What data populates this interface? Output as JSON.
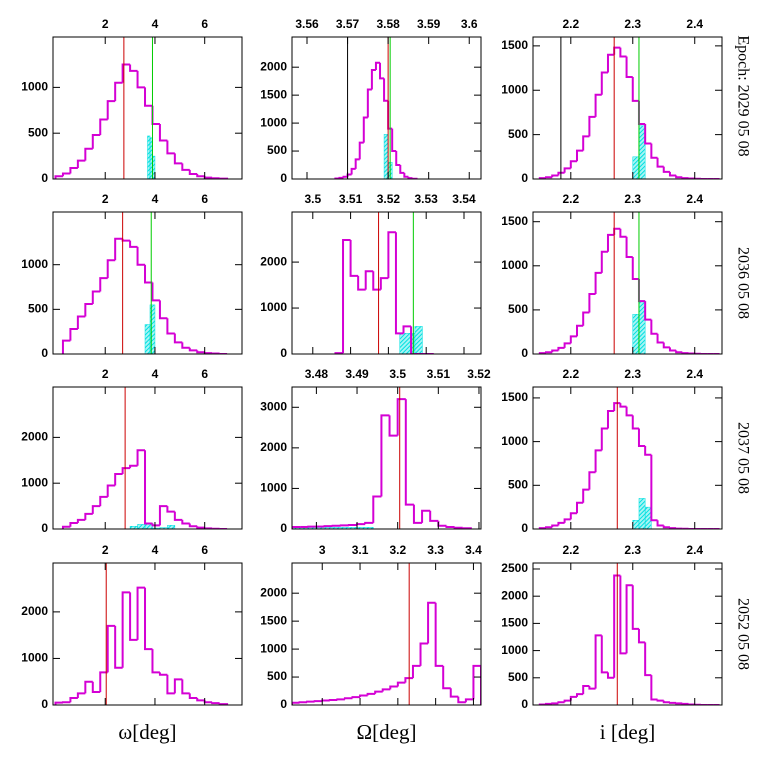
{
  "chart_data": [
    {
      "type": "histogram",
      "color": "#d400d4",
      "xlim": [
        -0.1,
        7.5
      ],
      "ylim": [
        0,
        1550
      ],
      "xticks": [
        2,
        4,
        6
      ],
      "yticks": [
        0,
        500,
        1000
      ],
      "bins": [
        0,
        0.3,
        0.6,
        0.9,
        1.2,
        1.5,
        1.8,
        2.1,
        2.4,
        2.7,
        3,
        3.3,
        3.6,
        3.9,
        4.2,
        4.5,
        4.8,
        5.1,
        5.4,
        5.7,
        6,
        6.3,
        6.6,
        6.9
      ],
      "values": [
        30,
        60,
        120,
        200,
        330,
        480,
        650,
        850,
        1050,
        1250,
        1180,
        1000,
        800,
        600,
        420,
        280,
        170,
        100,
        55,
        30,
        15,
        8,
        4
      ],
      "overlay": {
        "color": "#00e0e0",
        "bins": [
          3.7,
          3.8,
          3.9,
          4.0
        ],
        "values": [
          470,
          450,
          250
        ]
      },
      "vlines": [
        {
          "x": 2.75,
          "color": "#cc0000"
        },
        {
          "x": 3.9,
          "color": "#00cc00"
        }
      ]
    },
    {
      "type": "histogram",
      "color": "#d400d4",
      "xlim": [
        3.5563,
        3.6029
      ],
      "ylim": [
        0,
        2540
      ],
      "xticks": [
        3.56,
        3.57,
        3.58,
        3.59,
        3.6
      ],
      "yticks": [
        0,
        500,
        1000,
        1500,
        2000
      ],
      "bins": [
        3.567,
        3.568,
        3.569,
        3.57,
        3.571,
        3.572,
        3.573,
        3.574,
        3.575,
        3.576,
        3.577,
        3.578,
        3.579,
        3.58,
        3.581,
        3.582,
        3.583,
        3.584,
        3.585,
        3.586,
        3.587
      ],
      "values": [
        10,
        20,
        40,
        80,
        180,
        350,
        650,
        1100,
        1600,
        1950,
        2080,
        1800,
        1400,
        900,
        500,
        250,
        110,
        40,
        15,
        5
      ],
      "overlay": {
        "color": "#00e0e0",
        "bins": [
          3.579,
          3.58,
          3.581
        ],
        "values": [
          800,
          300
        ]
      },
      "vlines": [
        {
          "x": 3.57,
          "color": "#000000"
        },
        {
          "x": 3.58,
          "color": "#cc0000"
        },
        {
          "x": 3.5805,
          "color": "#00cc00"
        }
      ]
    },
    {
      "type": "histogram",
      "color": "#d400d4",
      "xlim": [
        2.139,
        2.444
      ],
      "ylim": [
        0,
        1600
      ],
      "xticks": [
        2.2,
        2.3,
        2.4
      ],
      "yticks": [
        0,
        500,
        1000,
        1500
      ],
      "bins": [
        2.15,
        2.16,
        2.17,
        2.18,
        2.19,
        2.2,
        2.21,
        2.22,
        2.23,
        2.24,
        2.25,
        2.26,
        2.27,
        2.28,
        2.29,
        2.3,
        2.31,
        2.32,
        2.33,
        2.34,
        2.35,
        2.36,
        2.37,
        2.38,
        2.39,
        2.4,
        2.41,
        2.42,
        2.43,
        2.44
      ],
      "values": [
        10,
        20,
        40,
        70,
        120,
        200,
        320,
        480,
        700,
        950,
        1200,
        1400,
        1480,
        1380,
        1150,
        880,
        620,
        400,
        240,
        140,
        80,
        40,
        20,
        10,
        5,
        3,
        0,
        0,
        0
      ],
      "overlay": {
        "color": "#00e0e0",
        "bins": [
          2.3,
          2.31,
          2.32
        ],
        "values": [
          250,
          600
        ]
      },
      "vlines": [
        {
          "x": 2.184,
          "color": "#000000"
        },
        {
          "x": 2.27,
          "color": "#cc0000"
        },
        {
          "x": 2.31,
          "color": "#00cc00"
        }
      ],
      "annotation": "Epoch: 2029 05 08"
    },
    {
      "type": "histogram",
      "color": "#d400d4",
      "xlim": [
        -0.1,
        7.5
      ],
      "ylim": [
        0,
        1590
      ],
      "xticks": [
        2,
        4,
        6
      ],
      "yticks": [
        0,
        500,
        1000
      ],
      "bins": [
        0.3,
        0.6,
        0.9,
        1.2,
        1.5,
        1.8,
        2.1,
        2.4,
        2.7,
        3,
        3.3,
        3.6,
        3.9,
        4.2,
        4.5,
        4.8,
        5.1,
        5.4,
        5.7,
        6,
        6.3,
        6.6,
        6.9
      ],
      "values": [
        150,
        280,
        420,
        560,
        700,
        850,
        1050,
        1290,
        1270,
        1200,
        1000,
        800,
        600,
        400,
        230,
        130,
        70,
        40,
        20,
        10,
        5,
        0
      ],
      "overlay": {
        "color": "#00e0e0",
        "bins": [
          3.6,
          3.8,
          4.0
        ],
        "values": [
          330,
          550
        ]
      },
      "vlines": [
        {
          "x": 2.7,
          "color": "#cc0000"
        },
        {
          "x": 3.85,
          "color": "#00cc00"
        }
      ]
    },
    {
      "type": "histogram",
      "color": "#d400d4",
      "xlim": [
        3.4945,
        3.5445
      ],
      "ylim": [
        0,
        3090
      ],
      "xticks": [
        3.5,
        3.51,
        3.52,
        3.53,
        3.54
      ],
      "yticks": [
        0,
        1000,
        2000
      ],
      "bins": [
        3.506,
        3.508,
        3.51,
        3.512,
        3.514,
        3.516,
        3.518,
        3.52,
        3.522,
        3.524,
        3.526,
        3.528,
        3.53,
        3.532
      ],
      "values": [
        20,
        2480,
        1700,
        1400,
        1800,
        1400,
        1650,
        2650,
        450,
        600,
        0,
        0,
        0
      ],
      "overlay": {
        "color": "#00e0e0",
        "bins": [
          3.523,
          3.527,
          3.529
        ],
        "values": [
          450,
          600
        ]
      },
      "vlines": [
        {
          "x": 3.5174,
          "color": "#cc0000"
        },
        {
          "x": 3.5266,
          "color": "#00cc00"
        }
      ]
    },
    {
      "type": "histogram",
      "color": "#d400d4",
      "xlim": [
        2.139,
        2.444
      ],
      "ylim": [
        0,
        1610
      ],
      "xticks": [
        2.2,
        2.3,
        2.4
      ],
      "yticks": [
        0,
        500,
        1000,
        1500
      ],
      "bins": [
        2.15,
        2.16,
        2.17,
        2.18,
        2.19,
        2.2,
        2.21,
        2.22,
        2.23,
        2.24,
        2.25,
        2.26,
        2.27,
        2.28,
        2.29,
        2.3,
        2.31,
        2.32,
        2.33,
        2.34,
        2.35,
        2.36,
        2.37,
        2.38,
        2.39,
        2.4,
        2.41,
        2.42,
        2.43,
        2.44
      ],
      "values": [
        10,
        20,
        40,
        70,
        120,
        200,
        320,
        470,
        680,
        920,
        1160,
        1350,
        1420,
        1330,
        1100,
        850,
        600,
        390,
        230,
        130,
        75,
        40,
        20,
        10,
        5,
        3,
        0,
        0,
        0
      ],
      "overlay": {
        "color": "#00e0e0",
        "bins": [
          2.3,
          2.31,
          2.32
        ],
        "values": [
          450,
          600
        ]
      },
      "vlines": [
        {
          "x": 2.27,
          "color": "#cc0000"
        },
        {
          "x": 2.31,
          "color": "#00cc00"
        }
      ],
      "annotation": "2036 05 08"
    },
    {
      "type": "histogram",
      "color": "#d400d4",
      "xlim": [
        -0.1,
        7.5
      ],
      "ylim": [
        0,
        3100
      ],
      "xticks": [
        2,
        4,
        6
      ],
      "yticks": [
        0,
        1000,
        2000
      ],
      "bins": [
        0.3,
        0.6,
        0.9,
        1.2,
        1.5,
        1.8,
        2.1,
        2.4,
        2.7,
        3,
        3.3,
        3.6,
        3.9,
        4.2,
        4.5,
        4.8,
        5.1,
        5.4,
        5.7,
        6,
        6.3,
        6.6,
        6.9
      ],
      "values": [
        50,
        130,
        200,
        330,
        500,
        700,
        950,
        1200,
        1330,
        1380,
        1720,
        120,
        80,
        500,
        380,
        200,
        120,
        60,
        30,
        15,
        5,
        0
      ],
      "overlay": {
        "color": "#00e0e0",
        "bins": [
          3.0,
          3.3,
          3.6,
          3.9,
          4.2,
          4.5,
          4.8
        ],
        "values": [
          60,
          100,
          130,
          20,
          30,
          80,
          40
        ]
      },
      "vlines": [
        {
          "x": 2.8,
          "color": "#cc0000"
        }
      ]
    },
    {
      "type": "histogram",
      "color": "#d400d4",
      "xlim": [
        3.474,
        3.5205
      ],
      "ylim": [
        0,
        3500
      ],
      "xticks": [
        3.48,
        3.49,
        3.5,
        3.51,
        3.52
      ],
      "yticks": [
        0,
        1000,
        2000,
        3000
      ],
      "bins": [
        3.474,
        3.476,
        3.478,
        3.48,
        3.482,
        3.484,
        3.486,
        3.488,
        3.49,
        3.492,
        3.494,
        3.496,
        3.498,
        3.5,
        3.502,
        3.504,
        3.506,
        3.508,
        3.51,
        3.512,
        3.514,
        3.516,
        3.518
      ],
      "values": [
        50,
        50,
        60,
        60,
        70,
        80,
        90,
        100,
        120,
        150,
        800,
        2800,
        2300,
        3200,
        600,
        150,
        450,
        200,
        80,
        50,
        30,
        20
      ],
      "overlay": {
        "color": "#00e0e0",
        "bins": [
          3.474,
          3.494
        ],
        "values": [
          40
        ]
      },
      "vlines": [
        {
          "x": 3.5005,
          "color": "#cc0000"
        }
      ]
    },
    {
      "type": "histogram",
      "color": "#d400d4",
      "xlim": [
        2.139,
        2.444
      ],
      "ylim": [
        0,
        1625
      ],
      "xticks": [
        2.2,
        2.3,
        2.4
      ],
      "yticks": [
        0,
        500,
        1000,
        1500
      ],
      "bins": [
        2.15,
        2.16,
        2.17,
        2.18,
        2.19,
        2.2,
        2.21,
        2.22,
        2.23,
        2.24,
        2.25,
        2.26,
        2.27,
        2.28,
        2.29,
        2.3,
        2.31,
        2.32,
        2.33,
        2.34,
        2.35,
        2.36,
        2.37,
        2.38,
        2.39,
        2.4,
        2.41,
        2.42,
        2.43,
        2.44
      ],
      "values": [
        10,
        20,
        40,
        70,
        110,
        180,
        300,
        450,
        650,
        900,
        1150,
        1350,
        1440,
        1400,
        1300,
        1150,
        950,
        850,
        100,
        40,
        20,
        10,
        5,
        3,
        0,
        0,
        0,
        0,
        0
      ],
      "overlay": {
        "color": "#00e0e0",
        "bins": [
          2.3,
          2.31,
          2.32,
          2.33
        ],
        "values": [
          100,
          350,
          250
        ]
      },
      "vlines": [
        {
          "x": 2.275,
          "color": "#cc0000"
        }
      ],
      "annotation": "2037 05 08"
    },
    {
      "type": "histogram",
      "color": "#d400d4",
      "xlim": [
        -0.1,
        7.5
      ],
      "ylim": [
        0,
        3050
      ],
      "xticks": [
        2,
        4,
        6
      ],
      "yticks": [
        0,
        1000,
        2000
      ],
      "bins": [
        0,
        0.3,
        0.6,
        0.9,
        1.2,
        1.5,
        1.8,
        2.1,
        2.4,
        2.7,
        3,
        3.3,
        3.6,
        3.9,
        4.2,
        4.5,
        4.8,
        5.1,
        5.4,
        5.7,
        6,
        6.3,
        6.6,
        6.9
      ],
      "values": [
        50,
        60,
        150,
        250,
        500,
        280,
        700,
        1700,
        800,
        2420,
        1400,
        2520,
        1200,
        700,
        650,
        250,
        550,
        250,
        150,
        100,
        60,
        40,
        20
      ],
      "vlines": [
        {
          "x": 2.04,
          "color": "#cc0000"
        }
      ],
      "xlabel": "ω[deg]"
    },
    {
      "type": "histogram",
      "color": "#d400d4",
      "xlim": [
        2.92,
        3.42
      ],
      "ylim": [
        0,
        2540
      ],
      "xticks": [
        3,
        3.1,
        3.2,
        3.3,
        3.4
      ],
      "yticks": [
        0,
        500,
        1000,
        1500,
        2000
      ],
      "bins": [
        2.92,
        2.94,
        2.96,
        2.98,
        3,
        3.02,
        3.04,
        3.06,
        3.08,
        3.1,
        3.12,
        3.14,
        3.16,
        3.18,
        3.2,
        3.22,
        3.24,
        3.26,
        3.28,
        3.3,
        3.32,
        3.34,
        3.36,
        3.38,
        3.4,
        3.42
      ],
      "values": [
        40,
        50,
        60,
        70,
        80,
        90,
        100,
        120,
        140,
        170,
        200,
        240,
        280,
        330,
        400,
        480,
        700,
        1100,
        1830,
        700,
        300,
        150,
        50,
        100,
        700
      ],
      "vlines": [
        {
          "x": 3.23,
          "color": "#cc0000"
        }
      ],
      "xlabel": "Ω[deg]"
    },
    {
      "type": "histogram",
      "color": "#d400d4",
      "xlim": [
        2.139,
        2.444
      ],
      "ylim": [
        0,
        2610
      ],
      "xticks": [
        2.2,
        2.3,
        2.4
      ],
      "yticks": [
        0,
        500,
        1000,
        1500,
        2000,
        2500
      ],
      "bins": [
        2.15,
        2.16,
        2.17,
        2.18,
        2.19,
        2.2,
        2.21,
        2.22,
        2.23,
        2.24,
        2.25,
        2.26,
        2.27,
        2.28,
        2.29,
        2.3,
        2.31,
        2.32,
        2.33,
        2.34,
        2.35,
        2.36,
        2.37,
        2.38,
        2.39,
        2.4,
        2.41,
        2.42,
        2.43,
        2.44
      ],
      "values": [
        10,
        20,
        30,
        50,
        80,
        150,
        200,
        350,
        300,
        1280,
        600,
        500,
        2380,
        950,
        2200,
        1400,
        1150,
        550,
        100,
        80,
        50,
        40,
        30,
        20,
        10,
        5,
        0,
        0,
        0
      ],
      "vlines": [
        {
          "x": 2.275,
          "color": "#cc0000"
        }
      ],
      "annotation": "2052 05 08",
      "xlabel": "i [deg]"
    }
  ]
}
